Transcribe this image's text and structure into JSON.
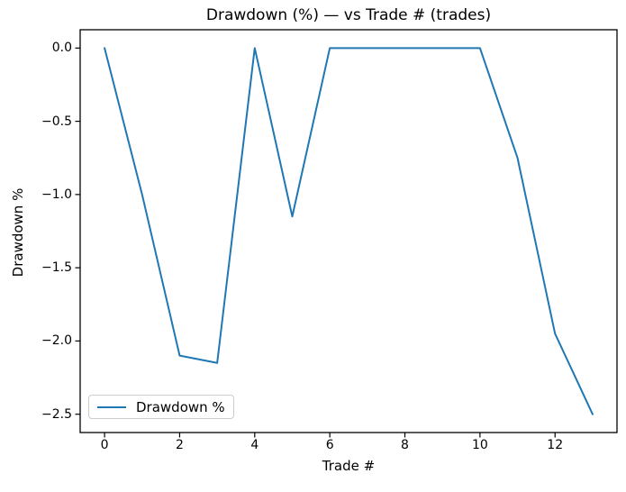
{
  "figure": {
    "title": "Drawdown (%) — vs Trade # (trades)",
    "xlabel": "Trade #",
    "ylabel": "Drawdown %",
    "legend": {
      "label": "Drawdown %",
      "line_color": "#1f77b4",
      "position": "lower left"
    }
  },
  "chart_data": {
    "type": "line",
    "title": "Drawdown (%) — vs Trade # (trades)",
    "xlabel": "Trade #",
    "ylabel": "Drawdown %",
    "x": [
      0,
      1,
      2,
      3,
      4,
      5,
      6,
      7,
      8,
      9,
      10,
      11,
      12,
      13
    ],
    "series": [
      {
        "name": "Drawdown %",
        "color": "#1f77b4",
        "values": [
          0.0,
          -1.0,
          -2.1,
          -2.15,
          0.0,
          -1.15,
          0.0,
          0.0,
          0.0,
          0.0,
          0.0,
          -0.75,
          -1.95,
          -2.5
        ]
      }
    ],
    "xlim": [
      -0.65,
      13.65
    ],
    "ylim": [
      -2.625,
      0.125
    ],
    "xticks": [
      0,
      2,
      4,
      6,
      8,
      10,
      12
    ],
    "xtick_labels": [
      "0",
      "2",
      "4",
      "6",
      "8",
      "10",
      "12"
    ],
    "yticks": [
      0.0,
      -0.5,
      -1.0,
      -1.5,
      -2.0,
      -2.5
    ],
    "ytick_labels": [
      "0.0",
      "−0.5",
      "−1.0",
      "−1.5",
      "−2.0",
      "−2.5"
    ],
    "grid": false,
    "legend_position": "lower left",
    "axis_color": "#000000",
    "background": "#ffffff"
  }
}
